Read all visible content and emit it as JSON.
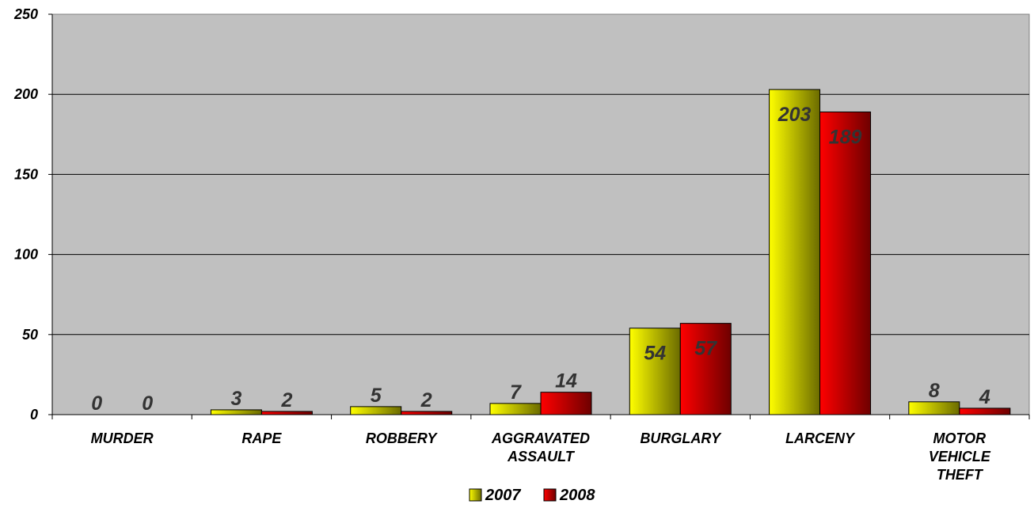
{
  "chart_data": {
    "type": "bar",
    "categories": [
      [
        "MURDER"
      ],
      [
        "RAPE"
      ],
      [
        "ROBBERY"
      ],
      [
        "AGGRAVATED",
        "ASSAULT"
      ],
      [
        "BURGLARY"
      ],
      [
        "LARCENY"
      ],
      [
        "MOTOR",
        "VEHICLE",
        "THEFT"
      ]
    ],
    "series": [
      {
        "name": "2007",
        "values": [
          0,
          3,
          5,
          7,
          54,
          203,
          8
        ],
        "color": "#ffff00",
        "shade": "#6b6b00"
      },
      {
        "name": "2008",
        "values": [
          0,
          2,
          2,
          14,
          57,
          189,
          4
        ],
        "color": "#ff0000",
        "shade": "#6e0000"
      }
    ],
    "title": "",
    "xlabel": "",
    "ylabel": "",
    "ylim": [
      0,
      250
    ],
    "yticks": [
      0,
      50,
      100,
      150,
      200,
      250
    ],
    "grid": true,
    "plot_background": "#c0c0c0",
    "legend_placement": "bottom-center",
    "data_labels": true
  }
}
